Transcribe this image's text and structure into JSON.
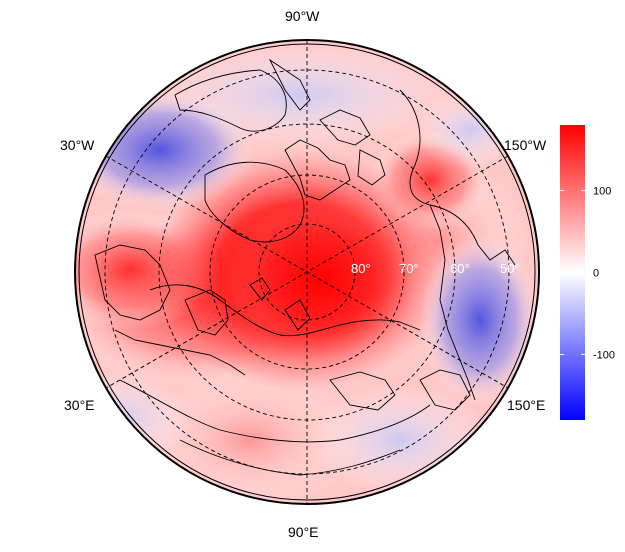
{
  "map": {
    "projection": "polar-stereographic-north",
    "longitude_labels": {
      "top": "90°W",
      "upper_left": "30°W",
      "upper_right": "150°W",
      "lower_left": "30°E",
      "lower_right": "150°E",
      "bottom": "90°E"
    },
    "latitude_labels": [
      "80°",
      "70°",
      "60°",
      "50°"
    ],
    "field": {
      "description_visible": "diverging red-white-blue shaded anomaly field",
      "hotspot_center": "north pole / central Arctic (strong red)",
      "negative_regions": [
        "Canada / Labrador sector (blue)",
        "North Pacific / Bering sector (blue)"
      ]
    }
  },
  "colorbar": {
    "orientation": "vertical",
    "range": [
      -180,
      180
    ],
    "ticks": [
      {
        "value": 100,
        "label": "100"
      },
      {
        "value": 0,
        "label": "0"
      },
      {
        "value": -100,
        "label": "-100"
      }
    ],
    "colors": {
      "high": "#ff0000",
      "mid": "#ffffff",
      "low": "#0000ff"
    }
  }
}
